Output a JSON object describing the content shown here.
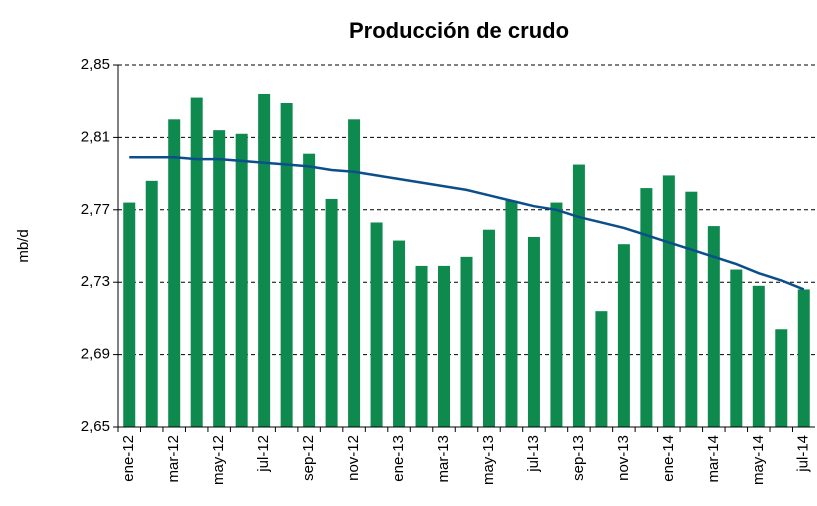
{
  "chart_data": {
    "type": "bar",
    "title": "Producción de crudo",
    "y_label": "mb/d",
    "categories": [
      "ene-12",
      null,
      "mar-12",
      null,
      "may-12",
      null,
      "jul-12",
      null,
      "sep-12",
      null,
      "nov-12",
      null,
      "ene-13",
      null,
      "mar-13",
      null,
      "may-13",
      null,
      "jul-13",
      null,
      "sep-13",
      null,
      "nov-13",
      null,
      "ene-14",
      null,
      "mar-14",
      null,
      "may-14",
      null,
      "jul-14"
    ],
    "values": [
      2.774,
      2.786,
      2.82,
      2.832,
      2.814,
      2.812,
      2.834,
      2.829,
      2.801,
      2.776,
      2.82,
      2.763,
      2.753,
      2.739,
      2.739,
      2.744,
      2.759,
      2.775,
      2.755,
      2.774,
      2.795,
      2.714,
      2.751,
      2.782,
      2.789,
      2.78,
      2.761,
      2.737,
      2.728,
      2.704,
      2.726
    ],
    "color": "#0f8a4f",
    "trend": {
      "color": "#0b4f8a",
      "values": [
        2.799,
        2.799,
        2.799,
        2.798,
        2.798,
        2.797,
        2.796,
        2.795,
        2.794,
        2.792,
        2.791,
        2.789,
        2.787,
        2.785,
        2.783,
        2.781,
        2.778,
        2.775,
        2.772,
        2.77,
        2.766,
        2.763,
        2.76,
        2.756,
        2.752,
        2.748,
        2.744,
        2.74,
        2.735,
        2.731,
        2.726
      ]
    },
    "ylim": [
      2.65,
      2.85
    ],
    "yticks": [
      {
        "value": 2.65,
        "label": "2,65"
      },
      {
        "value": 2.69,
        "label": "2,69"
      },
      {
        "value": 2.73,
        "label": "2,73"
      },
      {
        "value": 2.77,
        "label": "2,77"
      },
      {
        "value": 2.81,
        "label": "2,81"
      },
      {
        "value": 2.85,
        "label": "2,85"
      }
    ],
    "grid": true
  }
}
